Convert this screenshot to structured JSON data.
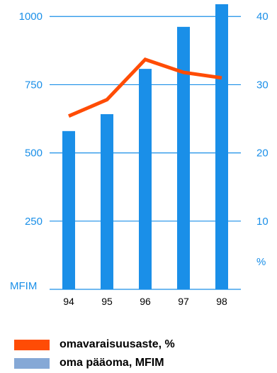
{
  "chart_data": {
    "type": "bar",
    "categories": [
      "94",
      "95",
      "96",
      "97",
      "98"
    ],
    "series": [
      {
        "name": "oma pääoma, MFIM",
        "type": "bar",
        "axis": "left",
        "values": [
          580,
          642,
          808,
          962,
          1045
        ]
      },
      {
        "name": "omavaraisuusaste, %",
        "type": "line",
        "axis": "right",
        "values": [
          25.4,
          27.8,
          33.7,
          31.8,
          31.0
        ]
      }
    ],
    "left_axis": {
      "unit_label": "MFIM",
      "ticks": [
        "250",
        "500",
        "750",
        "1000"
      ],
      "ylim": [
        0,
        1050
      ]
    },
    "right_axis": {
      "unit_label": "%",
      "ticks": [
        "10",
        "20",
        "30",
        "40"
      ],
      "ylim": [
        0,
        42
      ]
    },
    "grid": true
  },
  "colors": {
    "bar": "#1a8fe8",
    "line": "#ff4c05",
    "axis": "#1a8fe8",
    "legend_bar_swatch": "#85a8d6"
  },
  "legend": [
    {
      "label": "omavaraisuusaste, %",
      "swatch": "line"
    },
    {
      "label": "oma pääoma, MFIM",
      "swatch": "bar"
    }
  ]
}
